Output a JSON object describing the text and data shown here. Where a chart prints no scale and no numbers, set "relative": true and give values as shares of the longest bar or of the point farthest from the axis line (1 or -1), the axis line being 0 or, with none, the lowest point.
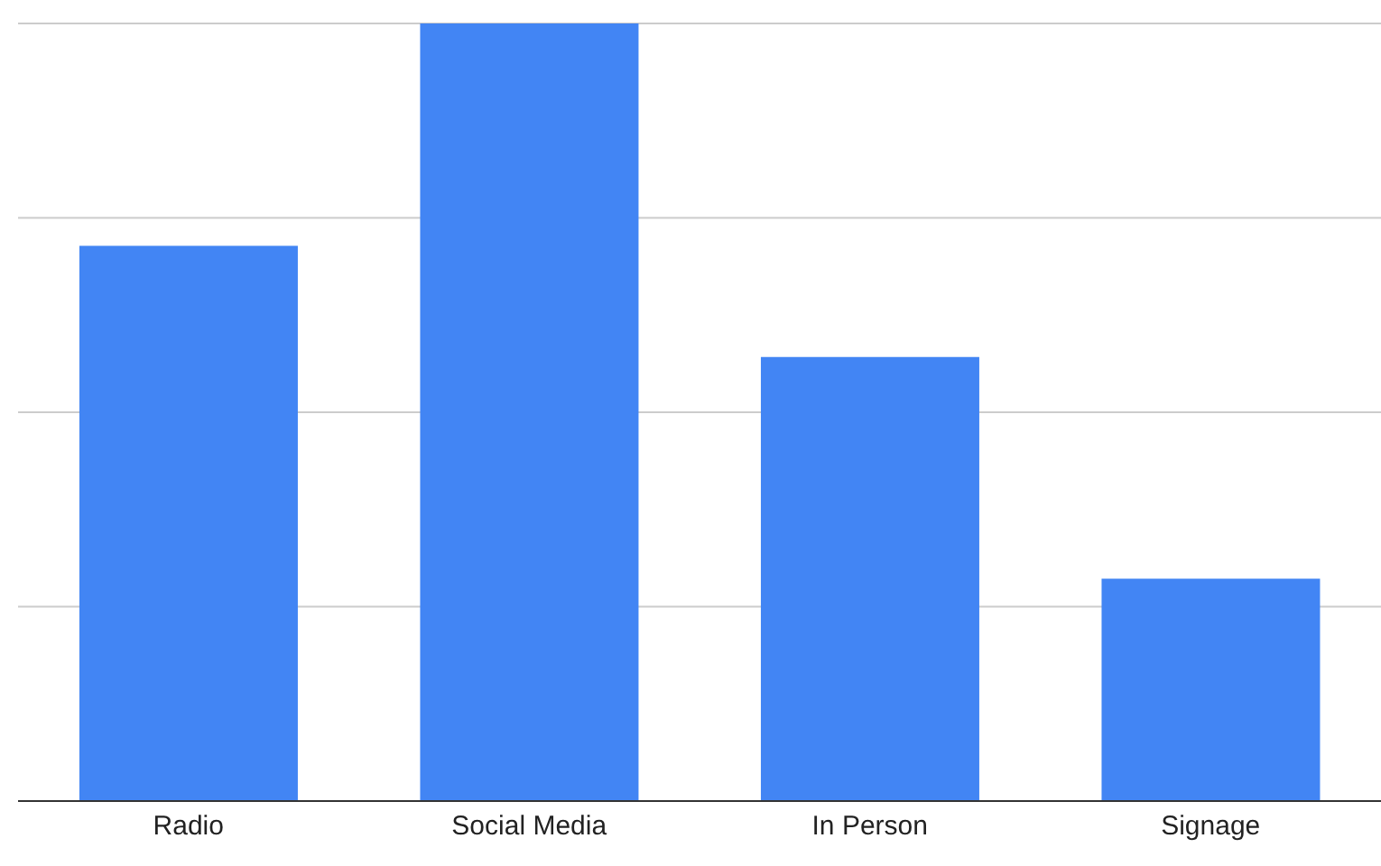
{
  "chart_data": {
    "type": "bar",
    "relative": true,
    "categories": [
      "Radio",
      "Social Media",
      "In Person",
      "Signage"
    ],
    "values": [
      0.714,
      1,
      0.571,
      0.286
    ],
    "color": "#4285f4",
    "grid": "y"
  }
}
